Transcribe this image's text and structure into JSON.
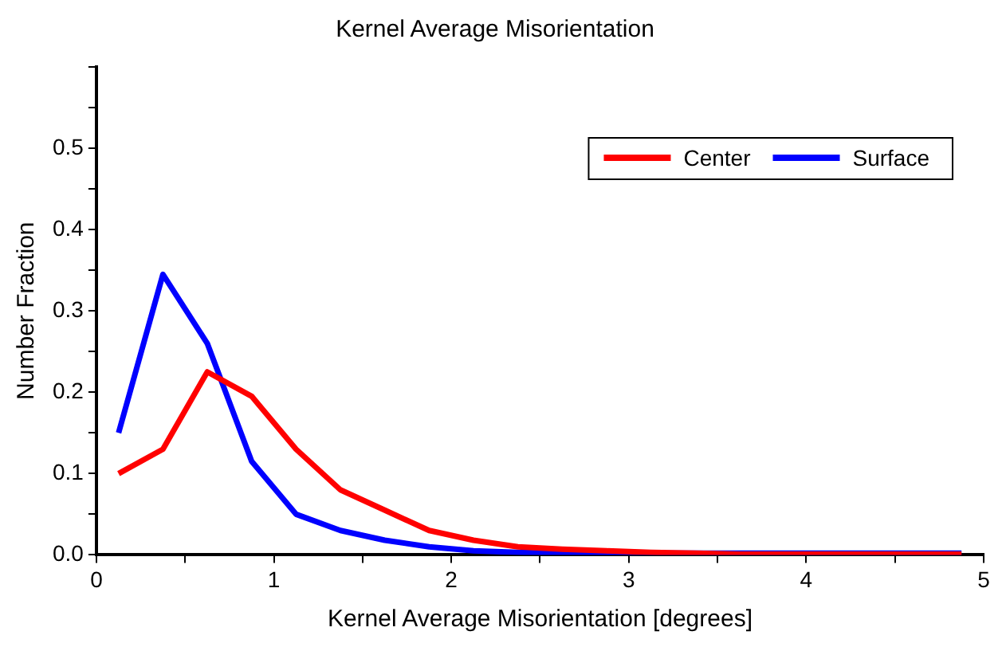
{
  "chart_data": {
    "type": "line",
    "title": "Kernel Average Misorientation",
    "xlabel": "Kernel Average Misorientation [degrees]",
    "ylabel": "Number Fraction",
    "x": [
      0.125,
      0.375,
      0.625,
      0.875,
      1.125,
      1.375,
      1.625,
      1.875,
      2.125,
      2.375,
      2.625,
      2.875,
      3.125,
      3.375,
      3.625,
      3.875,
      4.125,
      4.375,
      4.625,
      4.875
    ],
    "series": [
      {
        "name": "Center",
        "color": "#ff0000",
        "values": [
          0.1,
          0.13,
          0.225,
          0.195,
          0.13,
          0.08,
          0.055,
          0.03,
          0.018,
          0.01,
          0.007,
          0.005,
          0.003,
          0.002,
          0.001,
          0.001,
          0.001,
          0.001,
          0.001,
          0.001
        ]
      },
      {
        "name": "Surface",
        "color": "#0000ff",
        "values": [
          0.15,
          0.345,
          0.26,
          0.115,
          0.05,
          0.03,
          0.018,
          0.01,
          0.005,
          0.003,
          0.002,
          0.002,
          0.002,
          0.002,
          0.002,
          0.002,
          0.002,
          0.002,
          0.002,
          0.002
        ]
      }
    ],
    "xlim": [
      0,
      5
    ],
    "xticks": [
      0,
      {
        "value": 0.5,
        "label": null
      },
      1,
      {
        "value": 1.5,
        "label": null
      },
      2,
      {
        "value": 2.5,
        "label": null
      },
      3,
      {
        "value": 3.5,
        "label": null
      },
      4,
      {
        "value": 4.5,
        "label": null
      },
      5
    ],
    "ylim": [
      0,
      0.6
    ],
    "yticks": [
      {
        "value": 0,
        "label": "0.0"
      },
      {
        "value": 0.05,
        "label": null
      },
      0.1,
      {
        "value": 0.15,
        "label": null
      },
      0.2,
      {
        "value": 0.25,
        "label": null
      },
      0.3,
      {
        "value": 0.35,
        "label": null
      },
      0.4,
      {
        "value": 0.45,
        "label": null
      },
      0.5,
      {
        "value": 0.55,
        "label": null
      },
      {
        "value": 0.6,
        "label": null
      }
    ],
    "legend": "top right",
    "marker": "none",
    "line_style": "solid"
  }
}
